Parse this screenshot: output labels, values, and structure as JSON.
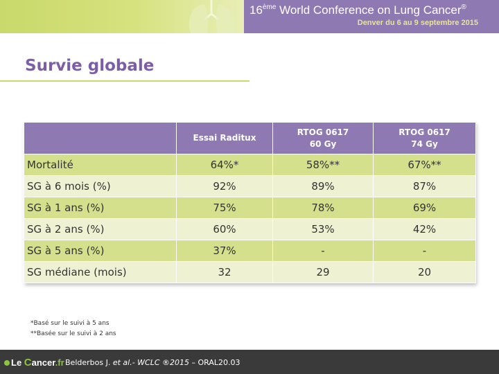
{
  "header": {
    "conference_ordinal": "16",
    "conference_superscript": "ème",
    "conference_name": " World Conference on Lung Cancer",
    "conference_mark": "®",
    "conference_dates": "Denver du 6 au 9 septembre 2015",
    "colors": {
      "left_band": "#c9d96a",
      "right_band": "#8e79b3",
      "dates_text": "#e8e49a"
    }
  },
  "slide": {
    "title": "Survie globale",
    "title_color": "#7b5ea7"
  },
  "table": {
    "columns": [
      {
        "line1": "",
        "line2": ""
      },
      {
        "line1": "Essai  Raditux",
        "line2": ""
      },
      {
        "line1": "RTOG  0617",
        "line2": "60 Gy"
      },
      {
        "line1": "RTOG  0617",
        "line2": "74 Gy"
      }
    ],
    "rows": [
      {
        "label": "Mortalité",
        "values": [
          "64%*",
          "58%**",
          "67%**"
        ]
      },
      {
        "label": "SG à 6 mois  (%)",
        "values": [
          "92%",
          "89%",
          "87%"
        ]
      },
      {
        "label": "SG à 1 ans (%)",
        "values": [
          "75%",
          "78%",
          "69%"
        ]
      },
      {
        "label": "SG à 2 ans (%)",
        "values": [
          "60%",
          "53%",
          "42%"
        ]
      },
      {
        "label": "SG à 5 ans (%)",
        "values": [
          "37%",
          "-",
          "-"
        ]
      },
      {
        "label": "SG médiane (mois)",
        "values": [
          "32",
          "29",
          "20"
        ]
      }
    ],
    "colors": {
      "header": "#8e79b3",
      "row_dark": "#d4e08c",
      "row_light": "#eef2d2"
    }
  },
  "footnotes": [
    "*Basé sur le suivi à 5 ans",
    "**Basée sur le suivi à 2 ans"
  ],
  "footer": {
    "logo": {
      "part1": "Le ",
      "part2": "C",
      "part3": "ancer",
      "part4": ".fr"
    },
    "citation_authors": "Belderbos J. ",
    "citation_etal": "et al.",
    "citation_journal": "- WCLC ®2015",
    "citation_ref": " – ORAL20.03"
  }
}
